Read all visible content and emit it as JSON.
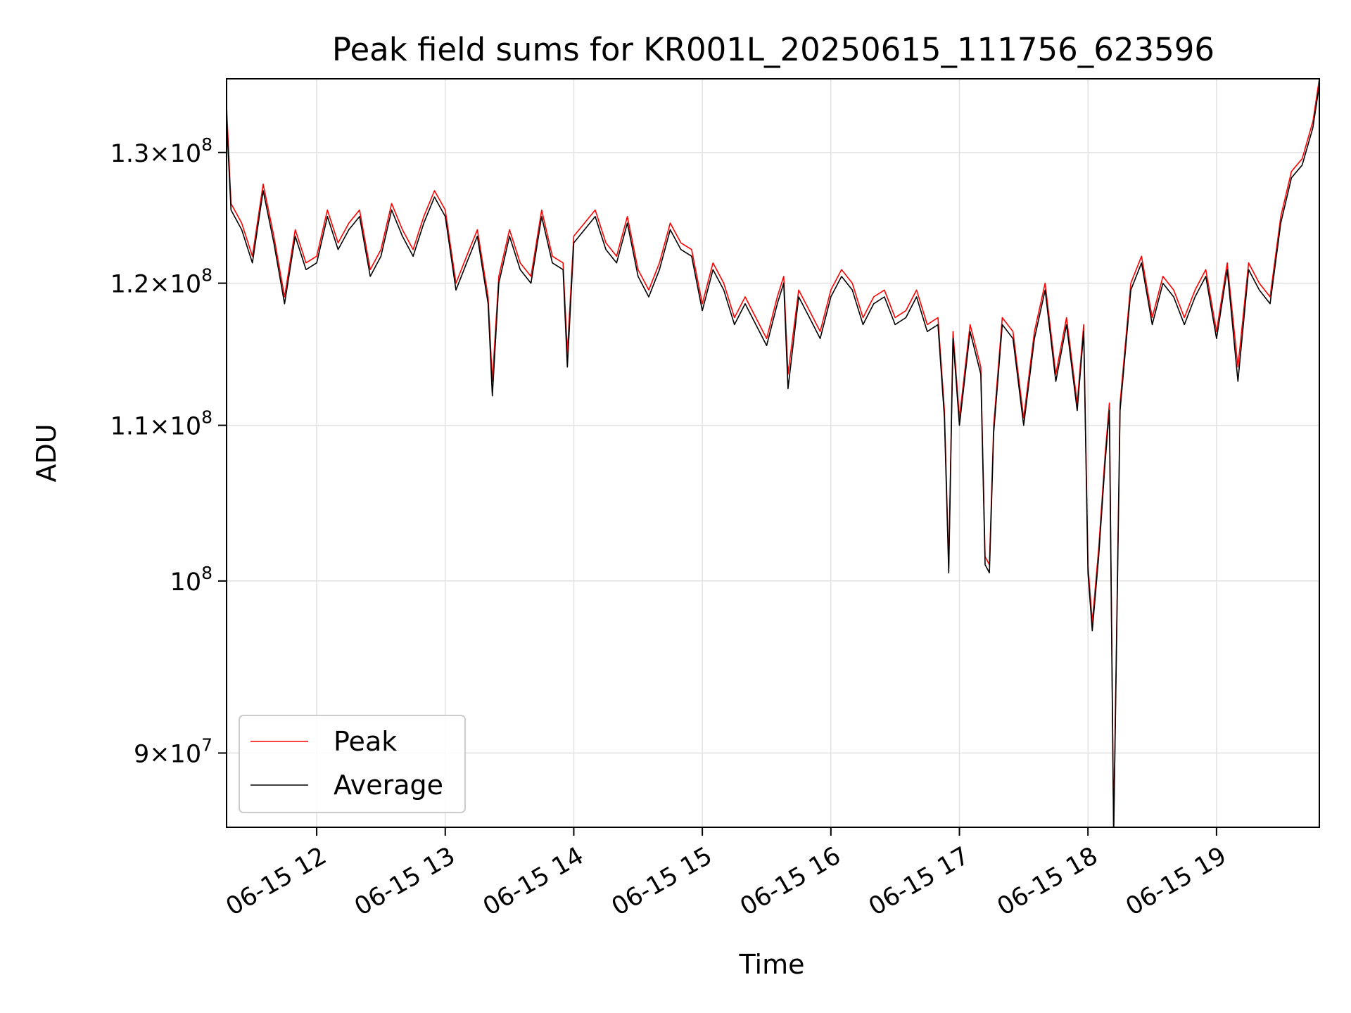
{
  "chart_data": {
    "type": "line",
    "title": "Peak field sums for KR001L_20250615_111756_623596",
    "xlabel": "Time",
    "ylabel": "ADU",
    "y_scale": "log",
    "ylim": [
      86000000,
      136000000
    ],
    "xlim": [
      "2025-06-15T11:17:56",
      "2025-06-15T19:48:00"
    ],
    "grid": true,
    "legend_position": "lower-left",
    "x_ticks": [
      {
        "value": "2025-06-15T12:00",
        "label": "06-15 12"
      },
      {
        "value": "2025-06-15T13:00",
        "label": "06-15 13"
      },
      {
        "value": "2025-06-15T14:00",
        "label": "06-15 14"
      },
      {
        "value": "2025-06-15T15:00",
        "label": "06-15 15"
      },
      {
        "value": "2025-06-15T16:00",
        "label": "06-15 16"
      },
      {
        "value": "2025-06-15T17:00",
        "label": "06-15 17"
      },
      {
        "value": "2025-06-15T18:00",
        "label": "06-15 18"
      },
      {
        "value": "2025-06-15T19:00",
        "label": "06-15 19"
      }
    ],
    "y_ticks": [
      {
        "value": 90000000,
        "mant": "9",
        "exp": "7"
      },
      {
        "value": 100000000,
        "mant": "",
        "exp": "8"
      },
      {
        "value": 110000000,
        "mant": "1.1",
        "exp": "8"
      },
      {
        "value": 120000000,
        "mant": "1.2",
        "exp": "8"
      },
      {
        "value": 130000000,
        "mant": "1.3",
        "exp": "8"
      }
    ],
    "series": [
      {
        "name": "Peak",
        "color": "#ff0000",
        "x": [
          "2025-06-15T11:18",
          "2025-06-15T11:20",
          "2025-06-15T11:25",
          "2025-06-15T11:30",
          "2025-06-15T11:35",
          "2025-06-15T11:40",
          "2025-06-15T11:45",
          "2025-06-15T11:50",
          "2025-06-15T11:55",
          "2025-06-15T12:00",
          "2025-06-15T12:05",
          "2025-06-15T12:10",
          "2025-06-15T12:15",
          "2025-06-15T12:20",
          "2025-06-15T12:25",
          "2025-06-15T12:30",
          "2025-06-15T12:35",
          "2025-06-15T12:40",
          "2025-06-15T12:45",
          "2025-06-15T12:50",
          "2025-06-15T12:55",
          "2025-06-15T13:00",
          "2025-06-15T13:05",
          "2025-06-15T13:10",
          "2025-06-15T13:15",
          "2025-06-15T13:20",
          "2025-06-15T13:22",
          "2025-06-15T13:25",
          "2025-06-15T13:30",
          "2025-06-15T13:35",
          "2025-06-15T13:40",
          "2025-06-15T13:45",
          "2025-06-15T13:50",
          "2025-06-15T13:55",
          "2025-06-15T13:57",
          "2025-06-15T14:00",
          "2025-06-15T14:05",
          "2025-06-15T14:10",
          "2025-06-15T14:15",
          "2025-06-15T14:20",
          "2025-06-15T14:25",
          "2025-06-15T14:30",
          "2025-06-15T14:35",
          "2025-06-15T14:40",
          "2025-06-15T14:45",
          "2025-06-15T14:50",
          "2025-06-15T14:55",
          "2025-06-15T15:00",
          "2025-06-15T15:05",
          "2025-06-15T15:10",
          "2025-06-15T15:15",
          "2025-06-15T15:20",
          "2025-06-15T15:25",
          "2025-06-15T15:30",
          "2025-06-15T15:35",
          "2025-06-15T15:38",
          "2025-06-15T15:40",
          "2025-06-15T15:45",
          "2025-06-15T15:50",
          "2025-06-15T15:55",
          "2025-06-15T16:00",
          "2025-06-15T16:05",
          "2025-06-15T16:10",
          "2025-06-15T16:15",
          "2025-06-15T16:20",
          "2025-06-15T16:25",
          "2025-06-15T16:30",
          "2025-06-15T16:35",
          "2025-06-15T16:40",
          "2025-06-15T16:45",
          "2025-06-15T16:50",
          "2025-06-15T16:53",
          "2025-06-15T16:55",
          "2025-06-15T16:57",
          "2025-06-15T17:00",
          "2025-06-15T17:05",
          "2025-06-15T17:10",
          "2025-06-15T17:12",
          "2025-06-15T17:14",
          "2025-06-15T17:16",
          "2025-06-15T17:20",
          "2025-06-15T17:25",
          "2025-06-15T17:30",
          "2025-06-15T17:35",
          "2025-06-15T17:40",
          "2025-06-15T17:45",
          "2025-06-15T17:50",
          "2025-06-15T17:55",
          "2025-06-15T17:58",
          "2025-06-15T18:00",
          "2025-06-15T18:02",
          "2025-06-15T18:05",
          "2025-06-15T18:08",
          "2025-06-15T18:10",
          "2025-06-15T18:12",
          "2025-06-15T18:15",
          "2025-06-15T18:20",
          "2025-06-15T18:25",
          "2025-06-15T18:30",
          "2025-06-15T18:35",
          "2025-06-15T18:40",
          "2025-06-15T18:45",
          "2025-06-15T18:50",
          "2025-06-15T18:55",
          "2025-06-15T19:00",
          "2025-06-15T19:05",
          "2025-06-15T19:10",
          "2025-06-15T19:15",
          "2025-06-15T19:20",
          "2025-06-15T19:25",
          "2025-06-15T19:30",
          "2025-06-15T19:35",
          "2025-06-15T19:40",
          "2025-06-15T19:45",
          "2025-06-15T19:48"
        ],
        "values": [
          133500000,
          126000000,
          124500000,
          122000000,
          127500000,
          123500000,
          119000000,
          124000000,
          121500000,
          122000000,
          125500000,
          123000000,
          124500000,
          125500000,
          121000000,
          122500000,
          126000000,
          124000000,
          122500000,
          125000000,
          127000000,
          125500000,
          120000000,
          122000000,
          124000000,
          119000000,
          113000000,
          120500000,
          124000000,
          121500000,
          120500000,
          125500000,
          122000000,
          121500000,
          115000000,
          123500000,
          124500000,
          125500000,
          123000000,
          122000000,
          125000000,
          121000000,
          119500000,
          121500000,
          124500000,
          123000000,
          122500000,
          118500000,
          121500000,
          120000000,
          117500000,
          119000000,
          117500000,
          116000000,
          119000000,
          120500000,
          113500000,
          119500000,
          118000000,
          116500000,
          119500000,
          121000000,
          120000000,
          117500000,
          119000000,
          119500000,
          117500000,
          118000000,
          119500000,
          117000000,
          117500000,
          111000000,
          101000000,
          116500000,
          110500000,
          117000000,
          114000000,
          101500000,
          101000000,
          110000000,
          117500000,
          116500000,
          110500000,
          116500000,
          120000000,
          113500000,
          117500000,
          111500000,
          117000000,
          101000000,
          97500000,
          102000000,
          108000000,
          111500000,
          86000000,
          111500000,
          120000000,
          122000000,
          117500000,
          120500000,
          119500000,
          117500000,
          119500000,
          121000000,
          116500000,
          121500000,
          114000000,
          121500000,
          120000000,
          119000000,
          125000000,
          128500000,
          129500000,
          132500000,
          136000000
        ]
      },
      {
        "name": "Average",
        "color": "#000000",
        "x": [
          "2025-06-15T11:18",
          "2025-06-15T11:20",
          "2025-06-15T11:25",
          "2025-06-15T11:30",
          "2025-06-15T11:35",
          "2025-06-15T11:40",
          "2025-06-15T11:45",
          "2025-06-15T11:50",
          "2025-06-15T11:55",
          "2025-06-15T12:00",
          "2025-06-15T12:05",
          "2025-06-15T12:10",
          "2025-06-15T12:15",
          "2025-06-15T12:20",
          "2025-06-15T12:25",
          "2025-06-15T12:30",
          "2025-06-15T12:35",
          "2025-06-15T12:40",
          "2025-06-15T12:45",
          "2025-06-15T12:50",
          "2025-06-15T12:55",
          "2025-06-15T13:00",
          "2025-06-15T13:05",
          "2025-06-15T13:10",
          "2025-06-15T13:15",
          "2025-06-15T13:20",
          "2025-06-15T13:22",
          "2025-06-15T13:25",
          "2025-06-15T13:30",
          "2025-06-15T13:35",
          "2025-06-15T13:40",
          "2025-06-15T13:45",
          "2025-06-15T13:50",
          "2025-06-15T13:55",
          "2025-06-15T13:57",
          "2025-06-15T14:00",
          "2025-06-15T14:05",
          "2025-06-15T14:10",
          "2025-06-15T14:15",
          "2025-06-15T14:20",
          "2025-06-15T14:25",
          "2025-06-15T14:30",
          "2025-06-15T14:35",
          "2025-06-15T14:40",
          "2025-06-15T14:45",
          "2025-06-15T14:50",
          "2025-06-15T14:55",
          "2025-06-15T15:00",
          "2025-06-15T15:05",
          "2025-06-15T15:10",
          "2025-06-15T15:15",
          "2025-06-15T15:20",
          "2025-06-15T15:25",
          "2025-06-15T15:30",
          "2025-06-15T15:35",
          "2025-06-15T15:38",
          "2025-06-15T15:40",
          "2025-06-15T15:45",
          "2025-06-15T15:50",
          "2025-06-15T15:55",
          "2025-06-15T16:00",
          "2025-06-15T16:05",
          "2025-06-15T16:10",
          "2025-06-15T16:15",
          "2025-06-15T16:20",
          "2025-06-15T16:25",
          "2025-06-15T16:30",
          "2025-06-15T16:35",
          "2025-06-15T16:40",
          "2025-06-15T16:45",
          "2025-06-15T16:50",
          "2025-06-15T16:53",
          "2025-06-15T16:55",
          "2025-06-15T16:57",
          "2025-06-15T17:00",
          "2025-06-15T17:05",
          "2025-06-15T17:10",
          "2025-06-15T17:12",
          "2025-06-15T17:14",
          "2025-06-15T17:16",
          "2025-06-15T17:20",
          "2025-06-15T17:25",
          "2025-06-15T17:30",
          "2025-06-15T17:35",
          "2025-06-15T17:40",
          "2025-06-15T17:45",
          "2025-06-15T17:50",
          "2025-06-15T17:55",
          "2025-06-15T17:58",
          "2025-06-15T18:00",
          "2025-06-15T18:02",
          "2025-06-15T18:05",
          "2025-06-15T18:08",
          "2025-06-15T18:10",
          "2025-06-15T18:12",
          "2025-06-15T18:15",
          "2025-06-15T18:20",
          "2025-06-15T18:25",
          "2025-06-15T18:30",
          "2025-06-15T18:35",
          "2025-06-15T18:40",
          "2025-06-15T18:45",
          "2025-06-15T18:50",
          "2025-06-15T18:55",
          "2025-06-15T19:00",
          "2025-06-15T19:05",
          "2025-06-15T19:10",
          "2025-06-15T19:15",
          "2025-06-15T19:20",
          "2025-06-15T19:25",
          "2025-06-15T19:30",
          "2025-06-15T19:35",
          "2025-06-15T19:40",
          "2025-06-15T19:45",
          "2025-06-15T19:48"
        ],
        "values": [
          132500000,
          125500000,
          124000000,
          121500000,
          127000000,
          123000000,
          118500000,
          123500000,
          121000000,
          121500000,
          125000000,
          122500000,
          124000000,
          125000000,
          120500000,
          122000000,
          125500000,
          123500000,
          122000000,
          124500000,
          126500000,
          125000000,
          119500000,
          121500000,
          123500000,
          118500000,
          112000000,
          120000000,
          123500000,
          121000000,
          120000000,
          125000000,
          121500000,
          121000000,
          114000000,
          123000000,
          124000000,
          125000000,
          122500000,
          121500000,
          124500000,
          120500000,
          119000000,
          121000000,
          124000000,
          122500000,
          122000000,
          118000000,
          121000000,
          119500000,
          117000000,
          118500000,
          117000000,
          115500000,
          118500000,
          120000000,
          112500000,
          119000000,
          117500000,
          116000000,
          119000000,
          120500000,
          119500000,
          117000000,
          118500000,
          119000000,
          117000000,
          117500000,
          119000000,
          116500000,
          117000000,
          110500000,
          100500000,
          116000000,
          110000000,
          116500000,
          113500000,
          101000000,
          100500000,
          109500000,
          117000000,
          116000000,
          110000000,
          116000000,
          119500000,
          113000000,
          117000000,
          111000000,
          116500000,
          100500000,
          97000000,
          101500000,
          107500000,
          111000000,
          85500000,
          111000000,
          119500000,
          121500000,
          117000000,
          120000000,
          119000000,
          117000000,
          119000000,
          120500000,
          116000000,
          121000000,
          113000000,
          121000000,
          119500000,
          118500000,
          124500000,
          128000000,
          129000000,
          132000000,
          135500000
        ]
      }
    ]
  }
}
